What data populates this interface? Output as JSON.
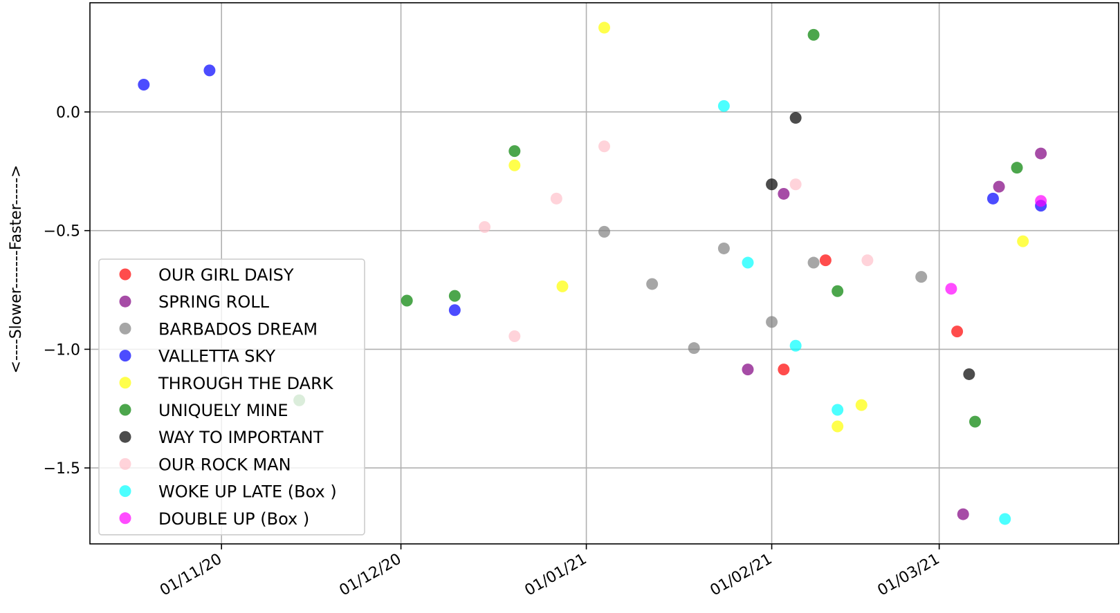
{
  "chart_data": {
    "type": "scatter",
    "title": "",
    "xlabel": "",
    "ylabel": "<----Slower-------Faster----->",
    "x_axis": {
      "kind": "date",
      "range": [
        "2020-10-10",
        "2021-03-31"
      ],
      "ticks": [
        {
          "date": "2020-11-01",
          "label": "01/11/20"
        },
        {
          "date": "2020-12-01",
          "label": "01/12/20"
        },
        {
          "date": "2021-01-01",
          "label": "01/01/21"
        },
        {
          "date": "2021-02-01",
          "label": "01/02/21"
        },
        {
          "date": "2021-03-01",
          "label": "01/03/21"
        }
      ]
    },
    "y_axis": {
      "range": [
        -1.82,
        0.46
      ],
      "ticks": [
        {
          "value": 0.0,
          "label": "0.0"
        },
        {
          "value": -0.5,
          "label": "−0.5"
        },
        {
          "value": -1.0,
          "label": "−1.0"
        },
        {
          "value": -1.5,
          "label": "−1.5"
        }
      ]
    },
    "grid": true,
    "legend_position": "lower-left",
    "series": [
      {
        "name": "OUR GIRL DAISY",
        "color": "#ff0000",
        "points": [
          {
            "x": "2021-02-03",
            "y": -1.085
          },
          {
            "x": "2021-02-10",
            "y": -0.625
          },
          {
            "x": "2021-03-04",
            "y": -0.925
          }
        ]
      },
      {
        "name": "SPRING ROLL",
        "color": "#800080",
        "points": [
          {
            "x": "2021-01-28",
            "y": -1.085
          },
          {
            "x": "2021-02-03",
            "y": -0.345
          },
          {
            "x": "2021-03-05",
            "y": -1.695
          },
          {
            "x": "2021-03-11",
            "y": -0.315
          },
          {
            "x": "2021-03-18",
            "y": -0.175
          }
        ]
      },
      {
        "name": "BARBADOS DREAM",
        "color": "#808080",
        "points": [
          {
            "x": "2021-01-04",
            "y": -0.505
          },
          {
            "x": "2021-01-12",
            "y": -0.725
          },
          {
            "x": "2021-01-19",
            "y": -0.995
          },
          {
            "x": "2021-01-24",
            "y": -0.575
          },
          {
            "x": "2021-02-01",
            "y": -0.885
          },
          {
            "x": "2021-02-08",
            "y": -0.635
          },
          {
            "x": "2021-02-26",
            "y": -0.695
          }
        ]
      },
      {
        "name": "VALLETTA SKY",
        "color": "#0000ff",
        "points": [
          {
            "x": "2020-10-19",
            "y": 0.115
          },
          {
            "x": "2020-10-30",
            "y": 0.175
          },
          {
            "x": "2020-12-10",
            "y": -0.835
          },
          {
            "x": "2021-03-10",
            "y": -0.365
          },
          {
            "x": "2021-03-18",
            "y": -0.395
          }
        ]
      },
      {
        "name": "THROUGH THE DARK",
        "color": "#ffff00",
        "points": [
          {
            "x": "2020-12-20",
            "y": -0.225
          },
          {
            "x": "2020-12-28",
            "y": -0.735
          },
          {
            "x": "2021-01-04",
            "y": 0.355
          },
          {
            "x": "2021-02-12",
            "y": -1.325
          },
          {
            "x": "2021-02-16",
            "y": -1.235
          },
          {
            "x": "2021-03-15",
            "y": -0.545
          }
        ]
      },
      {
        "name": "UNIQUELY MINE",
        "color": "#008000",
        "points": [
          {
            "x": "2020-11-14",
            "y": -1.215
          },
          {
            "x": "2020-12-02",
            "y": -0.795
          },
          {
            "x": "2020-12-10",
            "y": -0.775
          },
          {
            "x": "2020-12-20",
            "y": -0.165
          },
          {
            "x": "2021-02-08",
            "y": 0.325
          },
          {
            "x": "2021-02-12",
            "y": -0.755
          },
          {
            "x": "2021-03-07",
            "y": -1.305
          },
          {
            "x": "2021-03-14",
            "y": -0.235
          }
        ]
      },
      {
        "name": "WAY TO IMPORTANT",
        "color": "#000000",
        "points": [
          {
            "x": "2021-02-01",
            "y": -0.305
          },
          {
            "x": "2021-02-05",
            "y": -0.025
          },
          {
            "x": "2021-03-06",
            "y": -1.105
          }
        ]
      },
      {
        "name": "OUR ROCK MAN",
        "color": "#ffc0cb",
        "points": [
          {
            "x": "2020-12-15",
            "y": -0.485
          },
          {
            "x": "2020-12-20",
            "y": -0.945
          },
          {
            "x": "2020-12-27",
            "y": -0.365
          },
          {
            "x": "2021-01-04",
            "y": -0.145
          },
          {
            "x": "2021-02-05",
            "y": -0.305
          },
          {
            "x": "2021-02-17",
            "y": -0.625
          }
        ]
      },
      {
        "name": "WOKE UP LATE (Box )",
        "color": "#00ffff",
        "points": [
          {
            "x": "2021-01-24",
            "y": 0.025
          },
          {
            "x": "2021-01-28",
            "y": -0.635
          },
          {
            "x": "2021-02-05",
            "y": -0.985
          },
          {
            "x": "2021-02-12",
            "y": -1.255
          },
          {
            "x": "2021-03-12",
            "y": -1.715
          }
        ]
      },
      {
        "name": "DOUBLE UP (Box )",
        "color": "#ff00ff",
        "points": [
          {
            "x": "2021-03-03",
            "y": -0.745
          },
          {
            "x": "2021-03-18",
            "y": -0.375
          }
        ]
      }
    ]
  }
}
